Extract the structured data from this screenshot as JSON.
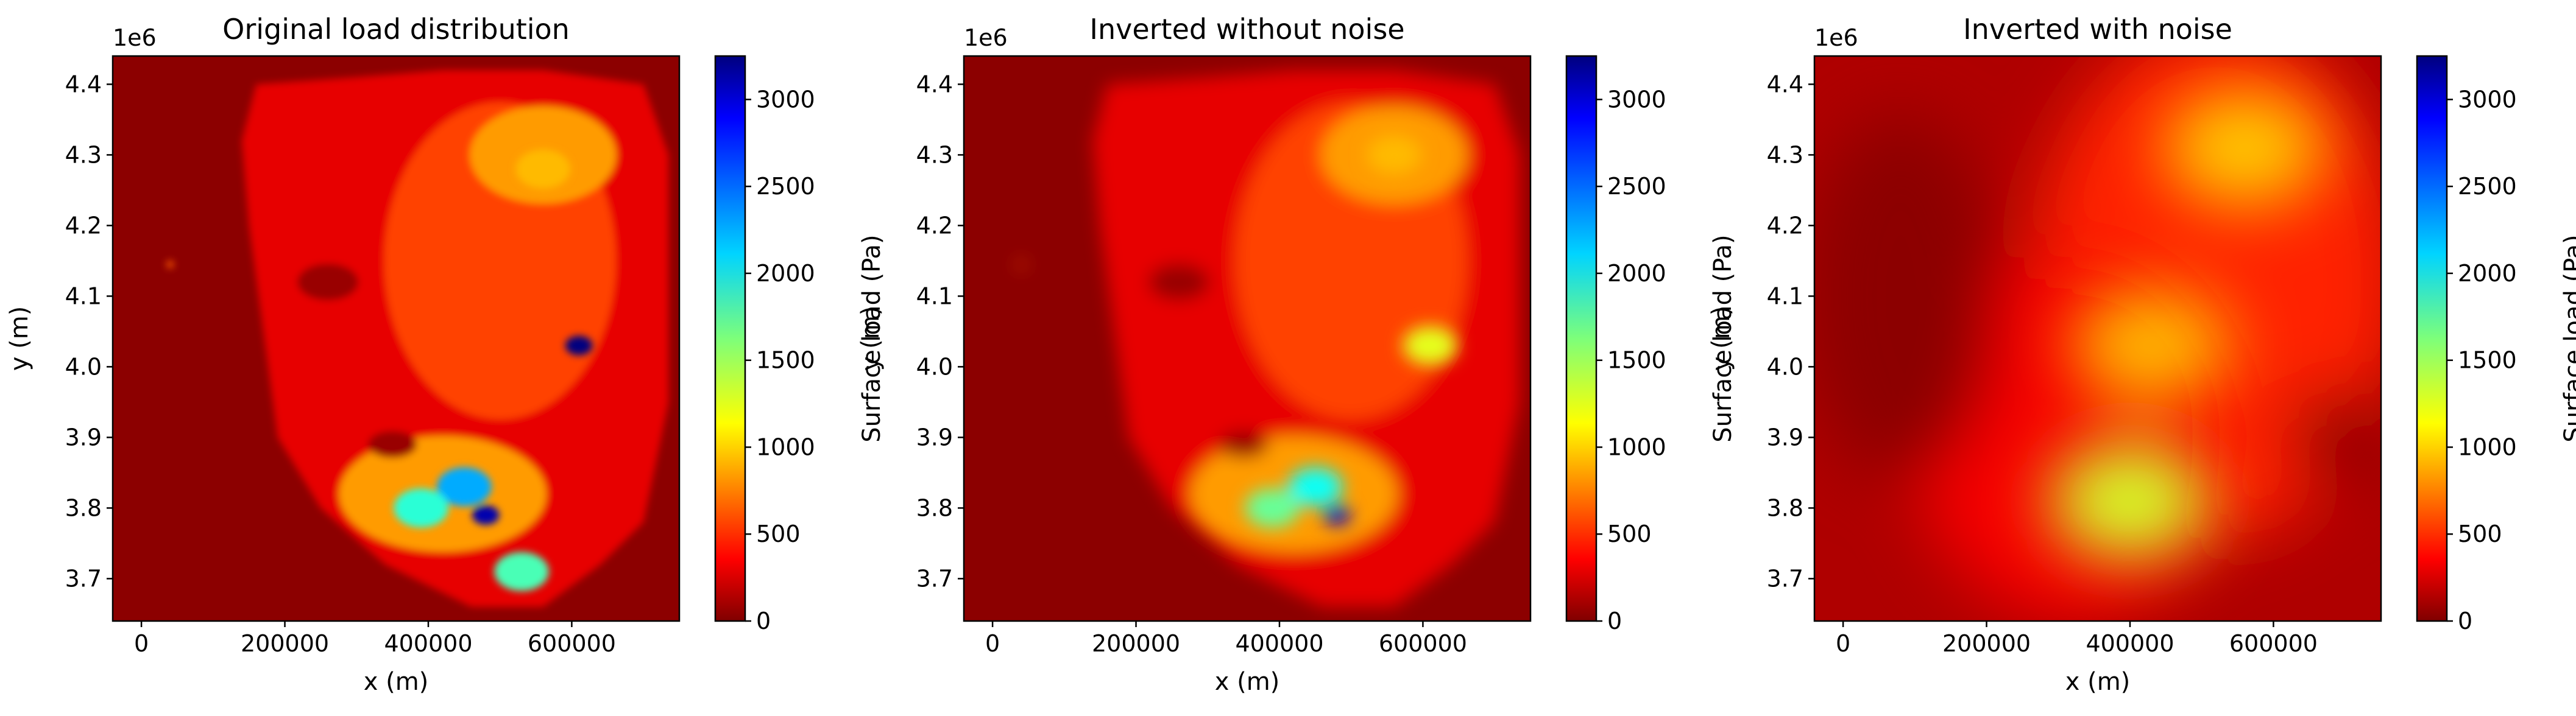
{
  "chart_data": [
    {
      "type": "heatmap",
      "title": "Original load distribution",
      "xlabel": "x (m)",
      "ylabel": "y (m)",
      "y_offset_label": "1e6",
      "xlim": [
        -40000,
        750000
      ],
      "ylim": [
        3.64,
        4.44
      ],
      "x_ticks": [
        "0",
        "200000",
        "400000",
        "600000"
      ],
      "y_ticks": [
        "3.7",
        "3.8",
        "3.9",
        "4.0",
        "4.1",
        "4.2",
        "4.3",
        "4.4"
      ],
      "colorbar": {
        "label": "Surface load (Pa)",
        "range": [
          0,
          3250
        ],
        "ticks": [
          "0",
          "500",
          "1000",
          "1500",
          "2000",
          "2500",
          "3000"
        ],
        "colormap": "jet_r"
      },
      "features": {
        "background_value": 40,
        "hot_spots": [
          {
            "x": 610000,
            "y": 4.03,
            "value": 3250
          },
          {
            "x": 480000,
            "y": 3.79,
            "value": 3100
          },
          {
            "x": 450000,
            "y": 3.83,
            "value": 2300
          },
          {
            "x": 390000,
            "y": 3.8,
            "value": 1900
          },
          {
            "x": 530000,
            "y": 3.71,
            "value": 1800
          },
          {
            "x": 560000,
            "y": 4.28,
            "value": 1000
          }
        ]
      }
    },
    {
      "type": "heatmap",
      "title": "Inverted without noise",
      "xlabel": "x (m)",
      "ylabel": "y (m)",
      "y_offset_label": "1e6",
      "xlim": [
        -40000,
        750000
      ],
      "ylim": [
        3.64,
        4.44
      ],
      "x_ticks": [
        "0",
        "200000",
        "400000",
        "600000"
      ],
      "y_ticks": [
        "3.7",
        "3.8",
        "3.9",
        "4.0",
        "4.1",
        "4.2",
        "4.3",
        "4.4"
      ],
      "colorbar": {
        "label": "Surface load (Pa)",
        "range": [
          0,
          3250
        ],
        "ticks": [
          "0",
          "500",
          "1000",
          "1500",
          "2000",
          "2500",
          "3000"
        ],
        "colormap": "jet_r"
      },
      "features": {
        "background_value": 40,
        "hot_spots": [
          {
            "x": 480000,
            "y": 3.79,
            "value": 3000
          },
          {
            "x": 450000,
            "y": 3.83,
            "value": 2000
          },
          {
            "x": 390000,
            "y": 3.8,
            "value": 1700
          },
          {
            "x": 610000,
            "y": 4.03,
            "value": 1300
          },
          {
            "x": 560000,
            "y": 4.3,
            "value": 1000
          }
        ]
      }
    },
    {
      "type": "heatmap",
      "title": "Inverted with noise",
      "xlabel": "x (m)",
      "ylabel": "y (m)",
      "y_offset_label": "1e6",
      "xlim": [
        -40000,
        750000
      ],
      "ylim": [
        3.64,
        4.44
      ],
      "x_ticks": [
        "0",
        "200000",
        "400000",
        "600000"
      ],
      "y_ticks": [
        "3.7",
        "3.8",
        "3.9",
        "4.0",
        "4.1",
        "4.2",
        "4.3",
        "4.4"
      ],
      "colorbar": {
        "label": "Surface load (Pa)",
        "range": [
          0,
          3250
        ],
        "ticks": [
          "0",
          "500",
          "1000",
          "1500",
          "2000",
          "2500",
          "3000"
        ],
        "colormap": "jet_r"
      },
      "features": {
        "background_value": 150,
        "hot_spots": [
          {
            "x": 400000,
            "y": 3.81,
            "value": 1350
          },
          {
            "x": 560000,
            "y": 4.31,
            "value": 1050
          },
          {
            "x": 430000,
            "y": 4.03,
            "value": 1000
          }
        ]
      }
    }
  ]
}
